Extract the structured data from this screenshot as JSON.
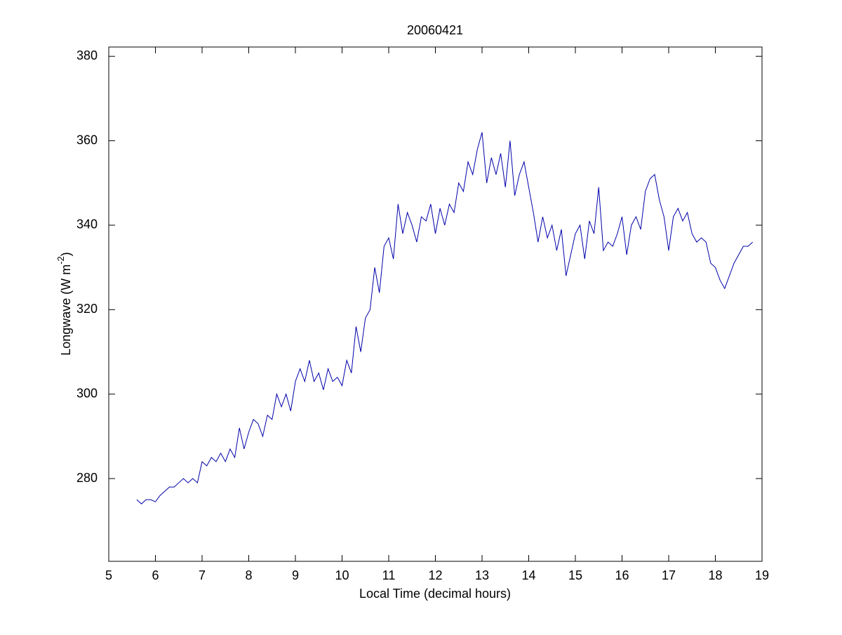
{
  "chart_data": {
    "type": "line",
    "title": "20060421",
    "xlabel": "Local Time (decimal hours)",
    "ylabel": [
      "Longwave (W m",
      "-2",
      ")"
    ],
    "xlim": [
      5,
      19
    ],
    "xticks": [
      5,
      6,
      7,
      8,
      9,
      10,
      11,
      12,
      13,
      14,
      15,
      16,
      17,
      18,
      19
    ],
    "ylim": [
      260.4,
      382.2
    ],
    "yticks": [
      280,
      300,
      320,
      340,
      360,
      380
    ],
    "x": [
      5.6,
      5.7,
      5.8,
      5.9,
      6.0,
      6.1,
      6.2,
      6.3,
      6.4,
      6.5,
      6.6,
      6.7,
      6.8,
      6.9,
      7.0,
      7.1,
      7.2,
      7.3,
      7.4,
      7.5,
      7.6,
      7.7,
      7.8,
      7.9,
      8.0,
      8.1,
      8.2,
      8.3,
      8.4,
      8.5,
      8.6,
      8.7,
      8.8,
      8.9,
      9.0,
      9.1,
      9.2,
      9.3,
      9.4,
      9.5,
      9.6,
      9.7,
      9.8,
      9.9,
      10.0,
      10.1,
      10.2,
      10.3,
      10.4,
      10.5,
      10.6,
      10.7,
      10.8,
      10.9,
      11.0,
      11.1,
      11.2,
      11.3,
      11.4,
      11.5,
      11.6,
      11.7,
      11.8,
      11.9,
      12.0,
      12.1,
      12.2,
      12.3,
      12.4,
      12.5,
      12.6,
      12.7,
      12.8,
      12.9,
      13.0,
      13.1,
      13.2,
      13.3,
      13.4,
      13.5,
      13.6,
      13.7,
      13.8,
      13.9,
      14.0,
      14.1,
      14.2,
      14.3,
      14.4,
      14.5,
      14.6,
      14.7,
      14.8,
      14.9,
      15.0,
      15.1,
      15.2,
      15.3,
      15.4,
      15.5,
      15.6,
      15.7,
      15.8,
      15.9,
      16.0,
      16.1,
      16.2,
      16.3,
      16.4,
      16.5,
      16.6,
      16.7,
      16.8,
      16.9,
      17.0,
      17.1,
      17.2,
      17.3,
      17.4,
      17.5,
      17.6,
      17.7,
      17.8,
      17.9,
      18.0,
      18.1,
      18.2,
      18.3,
      18.4,
      18.5,
      18.6,
      18.7,
      18.8
    ],
    "series": [
      {
        "name": "Longwave",
        "color": "#0000aa",
        "values": [
          275,
          274,
          275,
          275,
          274.5,
          276,
          277,
          278,
          278,
          279,
          280,
          279,
          280,
          279,
          284,
          283,
          285,
          284,
          286,
          284,
          287,
          285,
          292,
          287,
          291,
          294,
          293,
          290,
          295,
          294,
          300,
          297,
          300,
          296,
          303,
          306,
          303,
          308,
          303,
          305,
          301,
          306,
          303,
          304,
          302,
          308,
          305,
          316,
          310,
          318,
          320,
          330,
          324,
          335,
          337,
          332,
          345,
          338,
          343,
          340,
          336,
          342,
          341,
          345,
          338,
          344,
          340,
          345,
          343,
          350,
          348,
          355,
          352,
          358,
          362,
          350,
          356,
          352,
          357,
          349,
          360,
          347,
          352,
          355,
          349,
          343,
          336,
          342,
          337,
          340,
          334,
          339,
          328,
          333,
          338,
          340,
          332,
          341,
          338,
          349,
          334,
          336,
          335,
          338,
          342,
          333,
          340,
          342,
          339,
          348,
          351,
          352,
          346,
          342,
          334,
          342,
          344,
          341,
          343,
          338,
          336,
          337,
          336,
          331,
          330,
          327,
          325,
          328,
          331,
          333,
          335,
          335,
          336
        ]
      }
    ]
  }
}
